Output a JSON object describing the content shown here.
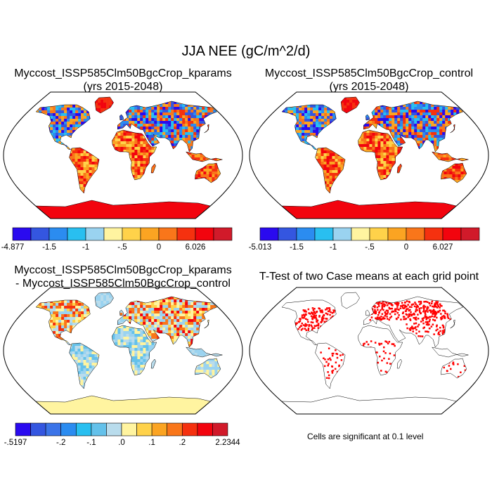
{
  "main_title": "JJA NEE (gC/m^2/d)",
  "panels": [
    {
      "id": "kparams",
      "title_line1": "Myccost_ISSP585Clm50BgcCrop_kparams",
      "title_line2": "(yrs 2015-2048)",
      "type": "field",
      "colorbar": {
        "colors": [
          "#2a0aef",
          "#3456e0",
          "#2b8cf0",
          "#29bff0",
          "#9ad3f0",
          "#fff4a0",
          "#ffd24a",
          "#fba422",
          "#f9761a",
          "#f5310f",
          "#f2040e",
          "#d11a2a"
        ],
        "labels": [
          {
            "text": "-4.877",
            "boundary": 0
          },
          {
            "text": "-1.5",
            "boundary": 2
          },
          {
            "text": "-1",
            "boundary": 4
          },
          {
            "text": ".5",
            "boundary": 6,
            "prefix": "-"
          },
          {
            "text": "0",
            "boundary": 8
          },
          {
            "text": "6.026",
            "boundary": 10
          }
        ]
      }
    },
    {
      "id": "control",
      "title_line1": "Myccost_ISSP585Clm50BgcCrop_control",
      "title_line2": "(yrs 2015-2048)",
      "type": "field",
      "colorbar": {
        "colors": [
          "#2a0aef",
          "#3456e0",
          "#2b8cf0",
          "#29bff0",
          "#9ad3f0",
          "#fff4a0",
          "#ffd24a",
          "#fba422",
          "#f9761a",
          "#f5310f",
          "#f2040e",
          "#d11a2a"
        ],
        "labels": [
          {
            "text": "-5.013",
            "boundary": 0
          },
          {
            "text": "-1.5",
            "boundary": 2
          },
          {
            "text": "-1",
            "boundary": 4
          },
          {
            "text": "-.5",
            "boundary": 6
          },
          {
            "text": "0",
            "boundary": 8
          },
          {
            "text": "6.027",
            "boundary": 10
          }
        ]
      }
    },
    {
      "id": "difference",
      "title_line1": "Myccost_ISSP585Clm50BgcCrop_kparams",
      "title_line2": "- Myccost_ISSP585Clm50BgcCrop_control",
      "type": "diff",
      "colorbar": {
        "colors": [
          "#2a0aef",
          "#3456e0",
          "#3b74e8",
          "#2b8cf0",
          "#29bff0",
          "#64c1ea",
          "#b9dcec",
          "#fff4a0",
          "#ffd24a",
          "#fba422",
          "#f9761a",
          "#f5310f",
          "#f2040e",
          "#d11a2a"
        ],
        "labels": [
          {
            "text": "-.5197",
            "boundary": 0
          },
          {
            "text": "-.2",
            "boundary": 3
          },
          {
            "text": "-.1",
            "boundary": 5
          },
          {
            "text": ".0",
            "boundary": 7
          },
          {
            "text": ".1",
            "boundary": 9
          },
          {
            "text": ".2",
            "boundary": 11
          },
          {
            "text": "2.2344",
            "boundary": 14
          }
        ]
      }
    },
    {
      "id": "ttest",
      "title_line1": "T-Test of two Case means at each grid point",
      "title_line2": "",
      "type": "ttest",
      "note": "Cells are significant at 0.1 level",
      "significance_color": "#ff0000"
    }
  ]
}
